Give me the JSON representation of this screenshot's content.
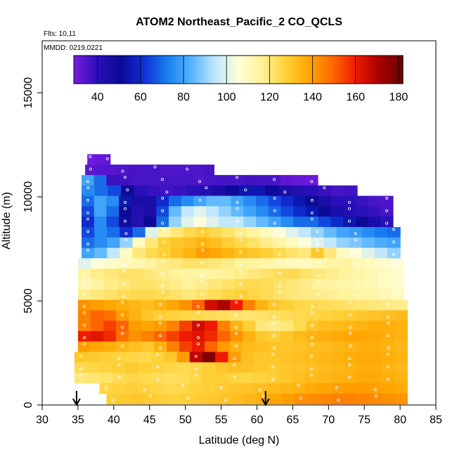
{
  "chart_data": {
    "type": "heatmap",
    "title": "ATOM2 Northeast_Pacific_2 CO_QCLS",
    "notes": [
      "Flts: 10,11",
      "MMDD: 0219,0221"
    ],
    "xlabel": "Latitude (deg N)",
    "ylabel": "Altitude (m)",
    "xlim": [
      30,
      85
    ],
    "ylim": [
      0,
      17500
    ],
    "x_ticks": [
      30,
      35,
      40,
      45,
      50,
      55,
      60,
      65,
      70,
      75,
      80,
      85
    ],
    "y_ticks": [
      0,
      5000,
      10000,
      15000
    ],
    "colorbar": {
      "range": [
        29,
        182
      ],
      "ticks": [
        40,
        60,
        80,
        100,
        120,
        140,
        160,
        180
      ],
      "colors": [
        "#7a1be0",
        "#2a10b8",
        "#0a0a95",
        "#1030d8",
        "#1a80ee",
        "#55b4ff",
        "#bfe6ff",
        "#ffffd8",
        "#fff29a",
        "#ffd23a",
        "#ffa500",
        "#ff6a00",
        "#ee1a00",
        "#a80000",
        "#6a0000"
      ]
    },
    "markers_latitude": [
      34.8,
      61.2
    ],
    "altitude_bins": [
      {
        "alt": 11800,
        "lat_start": 36.3,
        "lat_end": 39.5,
        "values": [
          30,
          31,
          32,
          32
        ]
      },
      {
        "alt": 11300,
        "lat_start": 36.0,
        "lat_end": 54.0,
        "values": [
          33,
          34,
          34,
          35,
          36,
          36,
          36,
          35,
          35,
          35,
          35,
          36
        ]
      },
      {
        "alt": 10800,
        "lat_start": 35.5,
        "lat_end": 68.5,
        "values": [
          80,
          70,
          38,
          37,
          36,
          36,
          36,
          36,
          36,
          35,
          36,
          36,
          36,
          37,
          36,
          36,
          33,
          32,
          31
        ]
      },
      {
        "alt": 10300,
        "lat_start": 35.5,
        "lat_end": 74.0,
        "values": [
          75,
          70,
          65,
          50,
          40,
          38,
          37,
          38,
          40,
          42,
          45,
          50,
          55,
          55,
          50,
          45,
          42,
          40,
          38,
          36,
          37
        ]
      },
      {
        "alt": 9800,
        "lat_start": 35.5,
        "lat_end": 79.0,
        "values": [
          70,
          80,
          75,
          55,
          45,
          45,
          60,
          70,
          75,
          80,
          85,
          85,
          80,
          75,
          70,
          65,
          60,
          55,
          50,
          45,
          40,
          40,
          38,
          36,
          35
        ]
      },
      {
        "alt": 9300,
        "lat_start": 35.5,
        "lat_end": 79.0,
        "values": [
          65,
          80,
          70,
          50,
          42,
          45,
          65,
          85,
          95,
          100,
          95,
          90,
          85,
          80,
          75,
          70,
          65,
          60,
          55,
          50,
          45,
          42,
          40,
          38,
          36
        ]
      },
      {
        "alt": 8800,
        "lat_start": 35.5,
        "lat_end": 79.0,
        "values": [
          60,
          75,
          65,
          48,
          42,
          50,
          70,
          90,
          100,
          105,
          100,
          95,
          95,
          90,
          85,
          80,
          75,
          70,
          70,
          65,
          60,
          55,
          50,
          45,
          40
        ]
      },
      {
        "alt": 8300,
        "lat_start": 35.5,
        "lat_end": 80.0,
        "values": [
          65,
          75,
          70,
          60,
          70,
          100,
          115,
          120,
          125,
          128,
          125,
          122,
          118,
          115,
          110,
          105,
          100,
          95,
          90,
          85,
          80,
          78,
          75,
          72,
          70
        ]
      },
      {
        "alt": 7800,
        "lat_start": 35.5,
        "lat_end": 80.0,
        "values": [
          70,
          75,
          80,
          90,
          110,
          120,
          128,
          130,
          132,
          135,
          132,
          128,
          125,
          122,
          118,
          115,
          110,
          105,
          100,
          95,
          90,
          88,
          85,
          82,
          80
        ]
      },
      {
        "alt": 7300,
        "lat_start": 35.5,
        "lat_end": 80.0,
        "values": [
          80,
          85,
          95,
          110,
          120,
          125,
          128,
          132,
          135,
          140,
          138,
          135,
          132,
          130,
          128,
          125,
          122,
          120,
          130,
          120,
          110,
          105,
          100,
          95,
          90
        ]
      },
      {
        "alt": 6800,
        "lat_start": 35.0,
        "lat_end": 80.5,
        "values": [
          100,
          105,
          108,
          110,
          112,
          115,
          118,
          120,
          122,
          122,
          120,
          118,
          116,
          115,
          114,
          112,
          110,
          110,
          112,
          114,
          115,
          112,
          110,
          108,
          105
        ]
      },
      {
        "alt": 6300,
        "lat_start": 35.0,
        "lat_end": 80.5,
        "values": [
          115,
          118,
          120,
          122,
          122,
          120,
          118,
          116,
          115,
          114,
          115,
          116,
          118,
          120,
          122,
          124,
          125,
          122,
          120,
          118,
          116,
          114,
          112,
          110,
          108
        ]
      },
      {
        "alt": 5800,
        "lat_start": 35.0,
        "lat_end": 80.5,
        "values": [
          112,
          115,
          118,
          120,
          122,
          122,
          120,
          118,
          116,
          118,
          120,
          122,
          124,
          125,
          124,
          122,
          120,
          118,
          116,
          115,
          114,
          113,
          112,
          110,
          108
        ]
      },
      {
        "alt": 5300,
        "lat_start": 35.0,
        "lat_end": 80.5,
        "values": [
          118,
          120,
          122,
          124,
          125,
          125,
          124,
          122,
          120,
          122,
          124,
          126,
          128,
          126,
          124,
          122,
          120,
          119,
          118,
          117,
          116,
          115,
          114,
          112,
          110
        ]
      },
      {
        "alt": 4800,
        "lat_start": 35.0,
        "lat_end": 81.0,
        "values": [
          142,
          140,
          138,
          136,
          134,
          132,
          135,
          138,
          142,
          150,
          165,
          170,
          160,
          145,
          135,
          130,
          128,
          126,
          125,
          124,
          123,
          122,
          121,
          120,
          119,
          118
        ]
      },
      {
        "alt": 4300,
        "lat_start": 35.0,
        "lat_end": 81.0,
        "values": [
          145,
          150,
          148,
          140,
          135,
          130,
          128,
          127,
          126,
          125,
          124,
          123,
          122,
          121,
          122,
          123,
          124,
          125,
          126,
          127,
          128,
          129,
          130,
          131,
          132,
          133
        ]
      },
      {
        "alt": 3800,
        "lat_start": 35.0,
        "lat_end": 81.0,
        "values": [
          145,
          150,
          155,
          150,
          140,
          138,
          140,
          145,
          155,
          165,
          160,
          145,
          135,
          128,
          120,
          118,
          120,
          125,
          130,
          132,
          133,
          134,
          135,
          136,
          136,
          135
        ]
      },
      {
        "alt": 3300,
        "lat_start": 35.0,
        "lat_end": 81.0,
        "values": [
          160,
          162,
          158,
          148,
          142,
          145,
          150,
          155,
          160,
          162,
          158,
          150,
          142,
          135,
          130,
          128,
          130,
          133,
          135,
          136,
          137,
          138,
          138,
          137,
          136,
          135
        ]
      },
      {
        "alt": 2800,
        "lat_start": 35.0,
        "lat_end": 81.0,
        "values": [
          140,
          138,
          136,
          134,
          132,
          130,
          135,
          145,
          155,
          160,
          150,
          140,
          135,
          133,
          132,
          131,
          130,
          131,
          132,
          133,
          134,
          135,
          136,
          136,
          135,
          134
        ]
      },
      {
        "alt": 2300,
        "lat_start": 34.5,
        "lat_end": 81.0,
        "values": [
          130,
          129,
          128,
          127,
          126,
          125,
          127,
          130,
          140,
          168,
          178,
          160,
          140,
          132,
          130,
          130,
          131,
          132,
          133,
          134,
          135,
          136,
          137,
          137,
          136,
          135
        ]
      },
      {
        "alt": 1800,
        "lat_start": 34.5,
        "lat_end": 81.0,
        "values": [
          125,
          126,
          127,
          128,
          129,
          128,
          127,
          126,
          125,
          126,
          128,
          130,
          132,
          131,
          130,
          129,
          130,
          131,
          132,
          133,
          134,
          135,
          136,
          136,
          135,
          134
        ]
      },
      {
        "alt": 1300,
        "lat_start": 34.5,
        "lat_end": 81.0,
        "values": [
          120,
          121,
          122,
          124,
          126,
          125,
          124,
          123,
          124,
          126,
          128,
          128,
          127,
          126,
          127,
          128,
          130,
          132,
          133,
          134,
          135,
          136,
          137,
          137,
          136,
          135
        ]
      },
      {
        "alt": 800,
        "lat_start": 38.0,
        "lat_end": 81.0,
        "values": [
          126,
          127,
          128,
          127,
          126,
          125,
          126,
          127,
          128,
          129,
          130,
          131,
          132,
          133,
          134,
          135,
          137,
          138,
          139,
          140,
          140,
          139,
          138,
          137
        ]
      },
      {
        "alt": 300,
        "lat_start": 39.0,
        "lat_end": 81.0,
        "values": [
          128,
          129,
          130,
          129,
          128,
          127,
          128,
          129,
          130,
          131,
          132,
          134,
          136,
          138,
          140,
          142,
          143,
          144,
          145,
          145,
          144,
          143,
          142,
          141
        ]
      }
    ]
  }
}
